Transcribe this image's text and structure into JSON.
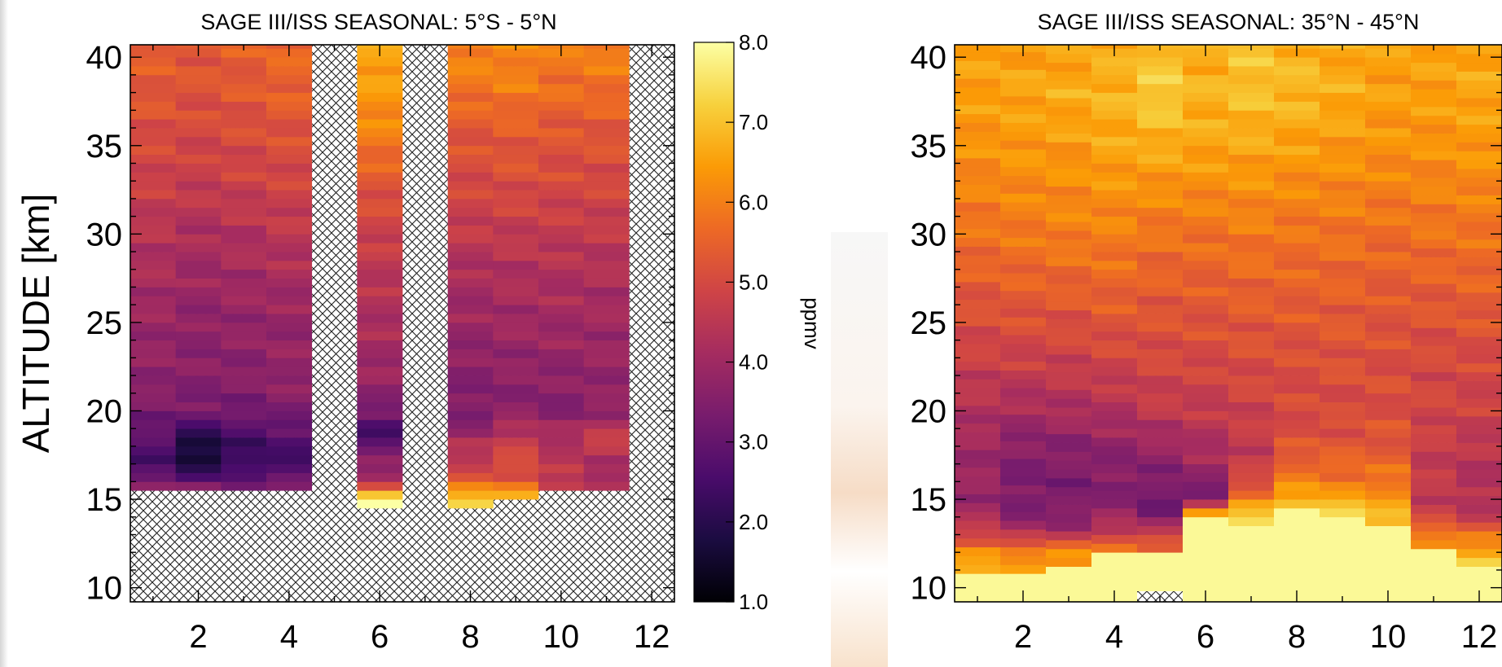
{
  "colors": {
    "colormap": [
      "#000004",
      "#1b0c41",
      "#4a0c6b",
      "#781c6d",
      "#a52c60",
      "#cf4446",
      "#ed6925",
      "#fb9b06",
      "#f7d13d",
      "#fcffa4"
    ],
    "hatch": "#222222",
    "frame": "#000000"
  },
  "chart_data": [
    {
      "type": "heatmap",
      "title": "SAGE III/ISS  SEASONAL: 5°S - 5°N",
      "ylabel": "ALTITUDE [km]",
      "xlabel": "",
      "xlim": [
        0.5,
        12.5
      ],
      "ylim": [
        9.2,
        40.7
      ],
      "xticks": [
        "2",
        "4",
        "6",
        "8",
        "10",
        "12"
      ],
      "yticks": [
        "10",
        "15",
        "20",
        "25",
        "30",
        "35",
        "40"
      ],
      "months": [
        1,
        2,
        3,
        4,
        5,
        6,
        7,
        8,
        9,
        10,
        11,
        12
      ],
      "missing_months": [
        5,
        7,
        12
      ],
      "bottom_altitude_km": [
        15.5,
        15.5,
        15.5,
        15.5,
        null,
        14.5,
        null,
        14.5,
        15.0,
        15.5,
        15.5,
        null
      ],
      "profile_anchors_km": [
        15,
        16,
        17,
        18,
        19,
        20,
        22,
        25,
        28,
        30,
        33,
        36,
        38,
        40
      ],
      "values_ppmv": [
        [
          4.9,
          3.1,
          2.6,
          2.7,
          3.0,
          3.4,
          3.7,
          3.9,
          4.2,
          4.4,
          4.8,
          5.1,
          5.3,
          5.4
        ],
        [
          4.9,
          3.0,
          1.8,
          1.4,
          2.5,
          3.3,
          3.6,
          3.7,
          4.0,
          4.2,
          4.7,
          5.0,
          5.2,
          5.3
        ],
        [
          4.9,
          3.0,
          2.2,
          2.4,
          2.7,
          3.3,
          3.6,
          3.8,
          4.1,
          4.3,
          4.8,
          5.1,
          5.3,
          5.4
        ],
        [
          5.4,
          3.0,
          2.5,
          2.6,
          2.9,
          3.4,
          3.8,
          3.8,
          4.2,
          4.5,
          4.9,
          5.2,
          5.5,
          5.6
        ],
        null,
        [
          7.8,
          4.3,
          3.6,
          3.2,
          2.3,
          3.4,
          3.9,
          4.2,
          4.5,
          4.8,
          5.3,
          6.1,
          6.4,
          6.6
        ],
        null,
        [
          7.4,
          5.3,
          4.7,
          4.3,
          3.7,
          3.4,
          3.6,
          3.9,
          4.2,
          4.6,
          5.0,
          5.3,
          5.8,
          6.1
        ],
        [
          7.0,
          5.4,
          5.0,
          4.8,
          4.4,
          3.6,
          3.7,
          4.0,
          4.3,
          4.6,
          5.1,
          5.4,
          5.9,
          6.1
        ],
        [
          5.4,
          4.6,
          4.4,
          4.4,
          4.0,
          3.5,
          3.7,
          4.0,
          4.3,
          4.6,
          5.0,
          5.3,
          5.7,
          5.9
        ],
        [
          5.4,
          3.8,
          4.2,
          4.7,
          4.5,
          3.7,
          3.8,
          4.0,
          4.3,
          4.6,
          5.0,
          5.3,
          5.7,
          6.0
        ],
        null
      ]
    },
    {
      "type": "heatmap",
      "title": "SAGE III/ISS  SEASONAL: 35°N - 45°N",
      "xlabel": "",
      "ylabel": "",
      "xlim": [
        0.5,
        12.5
      ],
      "ylim": [
        9.2,
        40.7
      ],
      "xticks": [
        "2",
        "4",
        "6",
        "8",
        "10",
        "12"
      ],
      "yticks": [
        "10",
        "15",
        "20",
        "25",
        "30",
        "35",
        "40"
      ],
      "months": [
        1,
        2,
        3,
        4,
        5,
        6,
        7,
        8,
        9,
        10,
        11,
        12
      ],
      "missing_segments": [
        {
          "month": 5,
          "from_km": 9.2,
          "to_km": 9.8
        }
      ],
      "yellow_top_km": [
        10.8,
        10.8,
        11.2,
        12.0,
        12.0,
        14.0,
        13.5,
        14.5,
        14.0,
        13.5,
        12.2,
        11.2
      ],
      "profile_anchors_km": [
        11,
        12,
        13,
        14,
        15,
        16,
        18,
        20,
        23,
        26,
        30,
        35,
        38,
        40
      ],
      "values_ppmv": [
        [
          6.6,
          6.3,
          4.9,
          4.2,
          3.9,
          3.9,
          4.0,
          4.3,
          4.8,
          5.2,
          5.8,
          6.3,
          6.5,
          6.5
        ],
        [
          6.4,
          6.2,
          4.4,
          3.6,
          3.4,
          3.4,
          3.6,
          4.1,
          4.8,
          5.3,
          5.9,
          6.4,
          6.6,
          6.5
        ],
        [
          6.6,
          6.3,
          4.3,
          3.6,
          3.4,
          3.4,
          3.6,
          4.2,
          4.8,
          5.3,
          6.0,
          6.4,
          6.7,
          6.5
        ],
        [
          7.9,
          6.3,
          4.8,
          3.9,
          3.6,
          3.5,
          3.7,
          4.3,
          4.9,
          5.4,
          6.0,
          6.6,
          6.8,
          6.7
        ],
        [
          7.9,
          5.9,
          4.8,
          3.4,
          3.2,
          3.4,
          3.9,
          4.6,
          5.0,
          5.3,
          5.8,
          6.7,
          7.2,
          7.0
        ],
        [
          7.9,
          7.9,
          7.9,
          7.9,
          3.0,
          3.7,
          4.2,
          4.6,
          5.0,
          5.3,
          5.8,
          6.6,
          6.8,
          6.7
        ],
        [
          7.9,
          7.9,
          7.9,
          7.1,
          6.2,
          4.9,
          4.6,
          4.8,
          5.1,
          5.4,
          5.9,
          6.6,
          7.0,
          7.0
        ],
        [
          7.9,
          7.9,
          7.9,
          7.9,
          6.8,
          6.0,
          5.2,
          5.0,
          5.1,
          5.4,
          5.8,
          6.5,
          6.9,
          6.8
        ],
        [
          7.9,
          7.9,
          7.9,
          7.9,
          6.5,
          5.9,
          5.3,
          5.0,
          5.2,
          5.4,
          5.8,
          6.4,
          6.7,
          6.6
        ],
        [
          7.9,
          7.9,
          7.9,
          6.8,
          6.4,
          5.9,
          5.3,
          5.1,
          5.1,
          5.3,
          5.7,
          6.3,
          6.5,
          6.5
        ],
        [
          7.9,
          7.0,
          5.9,
          4.9,
          4.6,
          4.6,
          4.7,
          4.9,
          5.0,
          5.3,
          5.8,
          6.3,
          6.5,
          6.5
        ],
        [
          7.9,
          6.7,
          5.7,
          4.6,
          4.3,
          4.3,
          4.5,
          4.8,
          5.0,
          5.4,
          5.8,
          6.4,
          6.6,
          6.6
        ]
      ]
    }
  ],
  "colorbar": {
    "label": "ppmv",
    "range": [
      1.0,
      8.0
    ],
    "ticks": [
      "8.0",
      "7.0",
      "6.0",
      "5.0",
      "4.0",
      "3.0",
      "2.0",
      "1.0"
    ]
  }
}
